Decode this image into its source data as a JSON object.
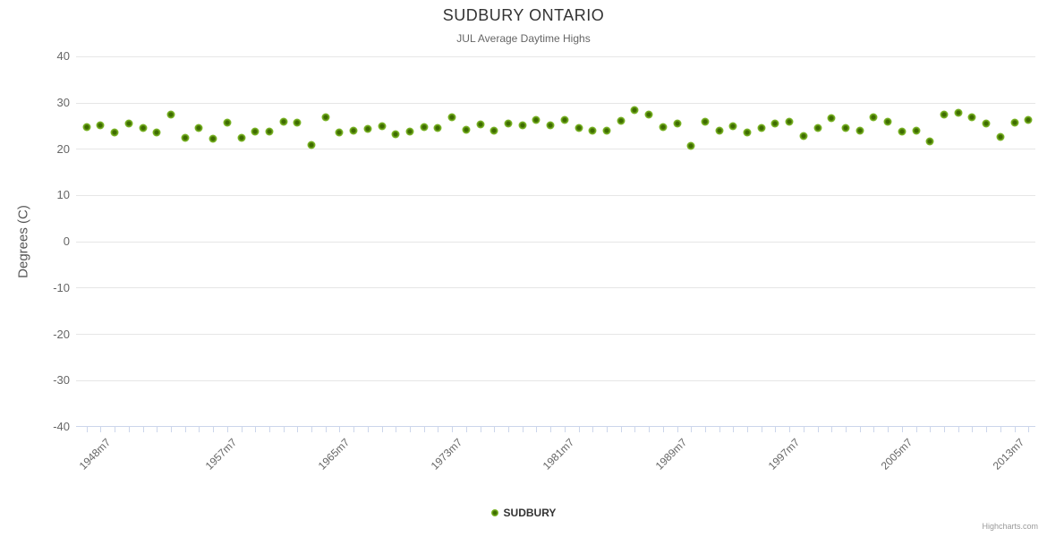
{
  "chart_data": {
    "type": "scatter",
    "title": "SUDBURY ONTARIO",
    "subtitle": "JUL Average Daytime Highs",
    "ylabel": "Degrees (C)",
    "ylim": [
      -40,
      40
    ],
    "grid": true,
    "legend_position": "bottom",
    "y_axis": {
      "ticks": [
        40,
        30,
        20,
        10,
        0,
        -10,
        -20,
        -30,
        -40
      ]
    },
    "x_axis": {
      "tick_labels": [
        {
          "year": 1948,
          "label": "1948m7"
        },
        {
          "year": 1957,
          "label": "1957m7"
        },
        {
          "year": 1965,
          "label": "1965m7"
        },
        {
          "year": 1973,
          "label": "1973m7"
        },
        {
          "year": 1981,
          "label": "1981m7"
        },
        {
          "year": 1989,
          "label": "1989m7"
        },
        {
          "year": 1997,
          "label": "1997m7"
        },
        {
          "year": 2005,
          "label": "2005m7"
        },
        {
          "year": 2013,
          "label": "2013m7"
        }
      ]
    },
    "series": [
      {
        "name": "SUDBURY",
        "x": [
          1947,
          1948,
          1949,
          1950,
          1951,
          1952,
          1953,
          1954,
          1955,
          1956,
          1957,
          1958,
          1959,
          1960,
          1961,
          1962,
          1963,
          1964,
          1965,
          1966,
          1967,
          1968,
          1969,
          1970,
          1971,
          1972,
          1973,
          1974,
          1975,
          1976,
          1977,
          1978,
          1979,
          1980,
          1981,
          1982,
          1983,
          1984,
          1985,
          1986,
          1987,
          1988,
          1989,
          1990,
          1991,
          1992,
          1993,
          1994,
          1995,
          1996,
          1997,
          1998,
          1999,
          2000,
          2001,
          2002,
          2003,
          2004,
          2005,
          2006,
          2007,
          2008,
          2009,
          2010,
          2011,
          2012,
          2013,
          2014
        ],
        "values": [
          24.7,
          25.1,
          23.6,
          25.5,
          24.5,
          23.7,
          27.4,
          22.4,
          24.6,
          22.3,
          25.7,
          22.4,
          23.8,
          23.8,
          26.0,
          25.8,
          21.0,
          26.9,
          23.7,
          24.0,
          24.3,
          24.9,
          23.3,
          23.8,
          24.7,
          24.6,
          26.9,
          24.2,
          25.3,
          24.0,
          25.6,
          25.1,
          26.4,
          25.1,
          26.4,
          24.5,
          24.0,
          24.0,
          26.2,
          28.5,
          27.4,
          24.7,
          25.5,
          20.7,
          26.0,
          24.0,
          24.9,
          23.6,
          24.5,
          25.5,
          26.0,
          22.8,
          24.5,
          26.7,
          24.5,
          24.0,
          26.9,
          26.0,
          23.8,
          24.0,
          21.7,
          27.4,
          27.8,
          26.9,
          25.6,
          22.7,
          25.8,
          26.4
        ]
      }
    ]
  },
  "legend": {
    "label": "SUDBURY"
  },
  "credits": "Highcharts.com",
  "colors": {
    "marker_dark": "#3e6c00",
    "marker_mid": "#6fa81c",
    "marker_light": "#8ec63f",
    "marker_edge": "#b9dc83",
    "grid": "#e6e6e6",
    "axis": "#ccd6eb",
    "title": "#333333",
    "subtitle": "#666666",
    "axis_labels": "#666666",
    "legend_text": "#333333",
    "credits_text": "#999999"
  }
}
